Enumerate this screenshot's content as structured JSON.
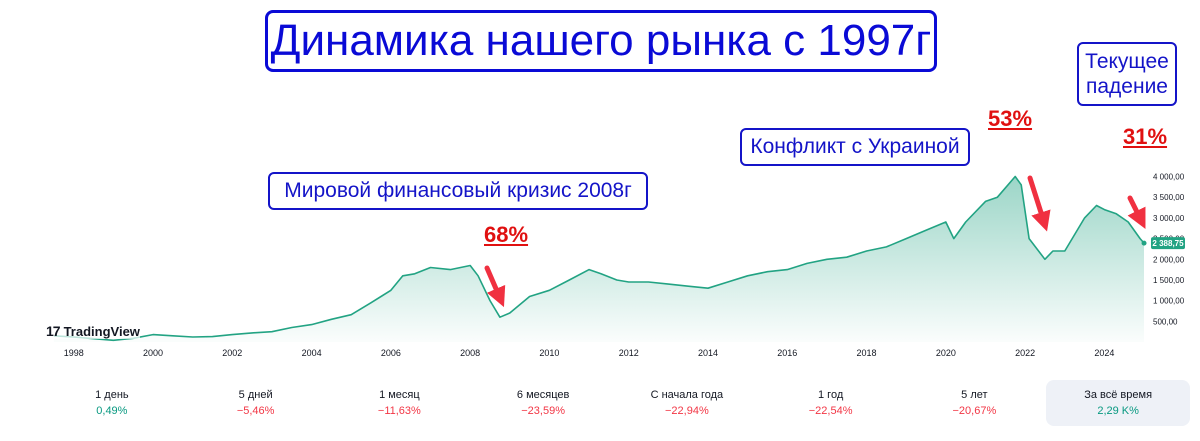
{
  "title": "Динамика нашего рынка с 1997г",
  "annotations": [
    {
      "label": "Мировой финансовый кризис 2008г",
      "drop": "68%"
    },
    {
      "label": "Конфликт с Украиной",
      "drop": "53%"
    },
    {
      "label": "Текущее падение",
      "drop": "31%"
    }
  ],
  "logo": {
    "mark": "17",
    "text": "TradingView"
  },
  "last_price": "2 388,75",
  "colors": {
    "line": "#22a383",
    "annotation": "#1414c8",
    "drop": "#e01010",
    "arrow": "#f03040"
  },
  "chart_data": {
    "type": "area",
    "x": [
      1997.5,
      1998,
      1998.5,
      1999,
      1999.5,
      2000,
      2000.5,
      2001,
      2001.5,
      2002,
      2002.5,
      2003,
      2003.5,
      2004,
      2004.5,
      2005,
      2005.5,
      2006,
      2006.3,
      2006.6,
      2007,
      2007.5,
      2008,
      2008.2,
      2008.5,
      2008.75,
      2009,
      2009.5,
      2010,
      2010.5,
      2011,
      2011.3,
      2011.7,
      2012,
      2012.5,
      2013,
      2013.5,
      2014,
      2014.5,
      2015,
      2015.5,
      2016,
      2016.5,
      2017,
      2017.5,
      2018,
      2018.5,
      2019,
      2019.5,
      2020,
      2020.2,
      2020.5,
      2021,
      2021.3,
      2021.75,
      2021.9,
      2022.1,
      2022.5,
      2022.7,
      2023,
      2023.5,
      2023.8,
      2024,
      2024.3,
      2024.6,
      2024.9,
      2025
    ],
    "values": [
      150,
      120,
      80,
      40,
      90,
      180,
      150,
      120,
      130,
      180,
      220,
      250,
      350,
      420,
      550,
      660,
      950,
      1250,
      1600,
      1650,
      1800,
      1750,
      1850,
      1600,
      1000,
      600,
      700,
      1100,
      1250,
      1500,
      1750,
      1650,
      1500,
      1450,
      1450,
      1400,
      1350,
      1300,
      1450,
      1600,
      1700,
      1750,
      1900,
      2000,
      2050,
      2200,
      2300,
      2500,
      2700,
      2900,
      2500,
      2900,
      3400,
      3500,
      4000,
      3800,
      2500,
      2000,
      2200,
      2200,
      3000,
      3300,
      3200,
      3100,
      2900,
      2500,
      2390
    ],
    "xlim": [
      1997.3,
      2025.1
    ],
    "ylim": [
      0,
      4400
    ],
    "x_ticks": [
      "1998",
      "2000",
      "2002",
      "2004",
      "2006",
      "2008",
      "2010",
      "2012",
      "2014",
      "2016",
      "2018",
      "2020",
      "2022",
      "2024"
    ],
    "y_ticks": [
      "500,00",
      "1 000,00",
      "1 500,00",
      "2 000,00",
      "2 500,00",
      "3 000,00",
      "3 500,00",
      "4 000,00"
    ],
    "y_tick_values": [
      500,
      1000,
      1500,
      2000,
      2500,
      3000,
      3500,
      4000
    ],
    "grid": false
  },
  "periods": [
    {
      "label": "1 день",
      "value": "0,49%",
      "sign": "pos"
    },
    {
      "label": "5 дней",
      "value": "−5,46%",
      "sign": "neg"
    },
    {
      "label": "1 месяц",
      "value": "−11,63%",
      "sign": "neg"
    },
    {
      "label": "6 месяцев",
      "value": "−23,59%",
      "sign": "neg"
    },
    {
      "label": "С начала года",
      "value": "−22,94%",
      "sign": "neg"
    },
    {
      "label": "1 год",
      "value": "−22,54%",
      "sign": "neg"
    },
    {
      "label": "5 лет",
      "value": "−20,67%",
      "sign": "neg"
    },
    {
      "label": "За всё время",
      "value": "2,29 K%",
      "sign": "pos",
      "active": true
    }
  ]
}
